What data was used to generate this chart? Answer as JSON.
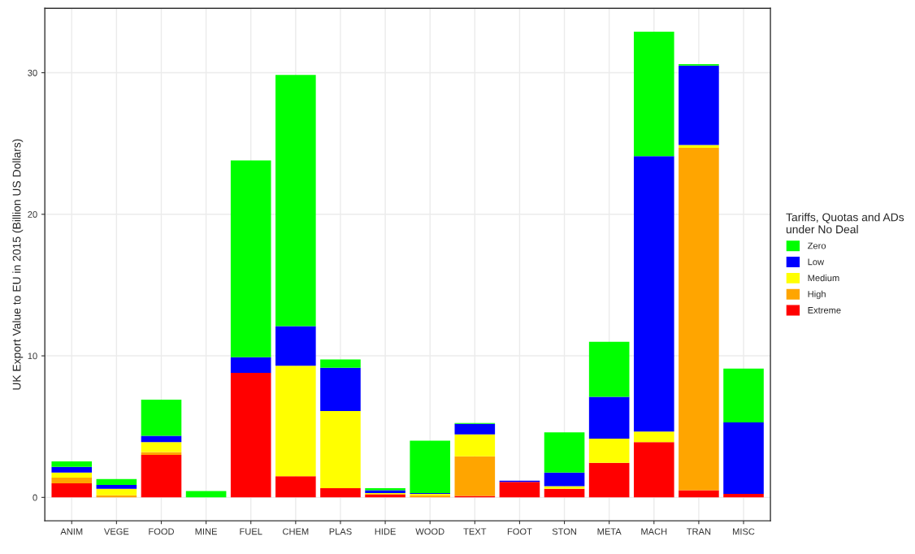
{
  "chart_data": {
    "type": "bar",
    "stacked": true,
    "categories": [
      "ANIM",
      "VEGE",
      "FOOD",
      "MINE",
      "FUEL",
      "CHEM",
      "PLAS",
      "HIDE",
      "WOOD",
      "TEXT",
      "FOOT",
      "STON",
      "META",
      "MACH",
      "TRAN",
      "MISC"
    ],
    "ylabel": "UK Export Value to EU in 2015 (Billion US Dollars)",
    "legend_title": "Tariffs, Quotas and ADs\nunder No Deal",
    "series": [
      {
        "name": "Extreme",
        "color": "#ff0000",
        "values": [
          1.0,
          null,
          3.0,
          null,
          8.8,
          1.5,
          0.65,
          0.2,
          null,
          0.1,
          1.1,
          0.6,
          2.45,
          3.9,
          0.5,
          0.25
        ]
      },
      {
        "name": "High",
        "color": "#ffa500",
        "values": [
          0.4,
          0.15,
          0.2,
          0,
          0,
          0,
          0,
          0.05,
          0.15,
          2.8,
          0,
          0,
          0,
          0,
          24.2,
          0
        ]
      },
      {
        "name": "Medium",
        "color": "#ffff00",
        "values": [
          0.35,
          0.45,
          0.7,
          0,
          0,
          7.8,
          5.45,
          0.05,
          0.1,
          1.55,
          0,
          0.2,
          1.7,
          0.75,
          0.2,
          0
        ]
      },
      {
        "name": "Low",
        "color": "#0000ff",
        "values": [
          0.4,
          0.28,
          0.45,
          0,
          1.1,
          2.8,
          3.05,
          0.2,
          0.05,
          0.75,
          0.08,
          0.95,
          2.95,
          19.45,
          5.6,
          5.05
        ]
      },
      {
        "name": "Zero",
        "color": "#00ff00",
        "values": [
          0.4,
          0.42,
          2.55,
          0.45,
          13.9,
          17.75,
          0.6,
          0.15,
          3.7,
          0.05,
          0,
          2.85,
          3.9,
          8.8,
          0.1,
          3.8
        ]
      }
    ],
    "ylim": [
      -1.65,
      34.55
    ],
    "yticks": [
      0,
      10,
      20,
      30
    ],
    "grid": true,
    "legend": "right"
  }
}
